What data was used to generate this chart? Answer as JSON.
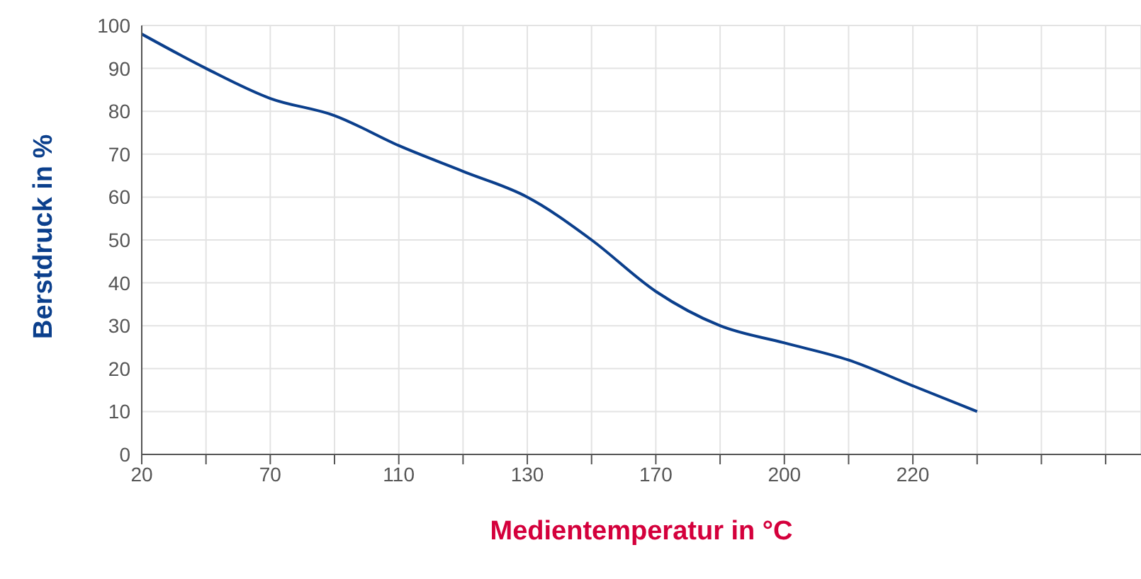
{
  "chart_data": {
    "type": "line",
    "xlabel": "Medientemperatur in °C",
    "ylabel": "Berstdruck in %",
    "categories": [
      "20",
      null,
      "70",
      null,
      "110",
      null,
      "130",
      null,
      "170",
      null,
      "200",
      null,
      "220",
      null,
      null,
      null
    ],
    "series": [
      {
        "color": "#0b3f8c",
        "values": [
          98,
          90,
          83,
          79,
          72,
          66,
          60,
          50,
          38,
          30,
          26,
          22,
          16,
          10,
          null,
          null
        ]
      }
    ],
    "ylim": [
      0,
      100
    ],
    "yticks": [
      0,
      10,
      20,
      30,
      40,
      50,
      60,
      70,
      80,
      90,
      100
    ],
    "grid": true,
    "marker": "none",
    "line_style": "solid"
  }
}
